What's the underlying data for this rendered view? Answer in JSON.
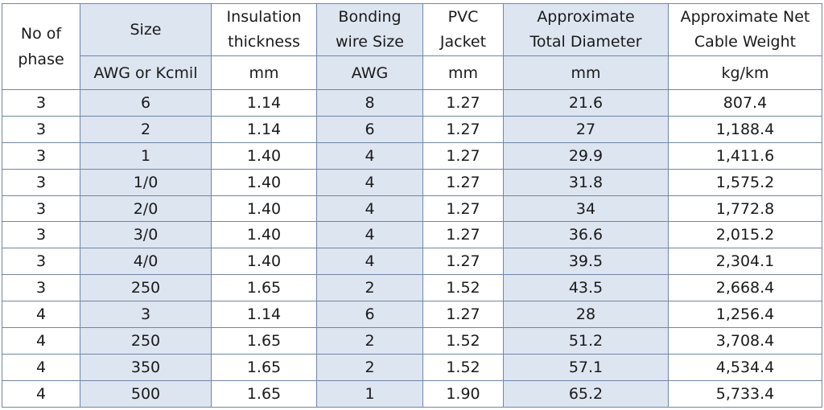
{
  "headers": {
    "phase": [
      "No of",
      "phase"
    ],
    "size": "Size",
    "size_unit": "AWG or Kcmil",
    "insulation": [
      "Insulation",
      "thickness"
    ],
    "insulation_unit": "mm",
    "bonding": [
      "Bonding",
      "wire Size"
    ],
    "bonding_unit": "AWG",
    "jacket": [
      "PVC",
      "Jacket"
    ],
    "jacket_unit": "mm",
    "diameter": [
      "Approximate",
      "Total Diameter"
    ],
    "diameter_unit": "mm",
    "weight": [
      "Approximate Net",
      "Cable Weight"
    ],
    "weight_unit": "kg/km"
  },
  "rows": [
    [
      "3",
      "6",
      "1.14",
      "8",
      "1.27",
      "21.6",
      "807.4"
    ],
    [
      "3",
      "2",
      "1.14",
      "6",
      "1.27",
      "27",
      "1,188.4"
    ],
    [
      "3",
      "1",
      "1.40",
      "4",
      "1.27",
      "29.9",
      "1,411.6"
    ],
    [
      "3",
      "1/0",
      "1.40",
      "4",
      "1.27",
      "31.8",
      "1,575.2"
    ],
    [
      "3",
      "2/0",
      "1.40",
      "4",
      "1.27",
      "34",
      "1,772.8"
    ],
    [
      "3",
      "3/0",
      "1.40",
      "4",
      "1.27",
      "36.6",
      "2,015.2"
    ],
    [
      "3",
      "4/0",
      "1.40",
      "4",
      "1.27",
      "39.5",
      "2,304.1"
    ],
    [
      "3",
      "250",
      "1.65",
      "2",
      "1.52",
      "43.5",
      "2,668.4"
    ],
    [
      "4",
      "3",
      "1.14",
      "6",
      "1.27",
      "28",
      "1,256.4"
    ],
    [
      "4",
      "250",
      "1.65",
      "2",
      "1.52",
      "51.2",
      "3,708.4"
    ],
    [
      "4",
      "350",
      "1.65",
      "2",
      "1.52",
      "57.1",
      "4,534.4"
    ],
    [
      "4",
      "500",
      "1.65",
      "1",
      "1.90",
      "65.2",
      "5,733.4"
    ]
  ],
  "colors": {
    "border": "#6f86a8",
    "shaded_column": "#dde5f0",
    "text": "#1a1a1a"
  }
}
